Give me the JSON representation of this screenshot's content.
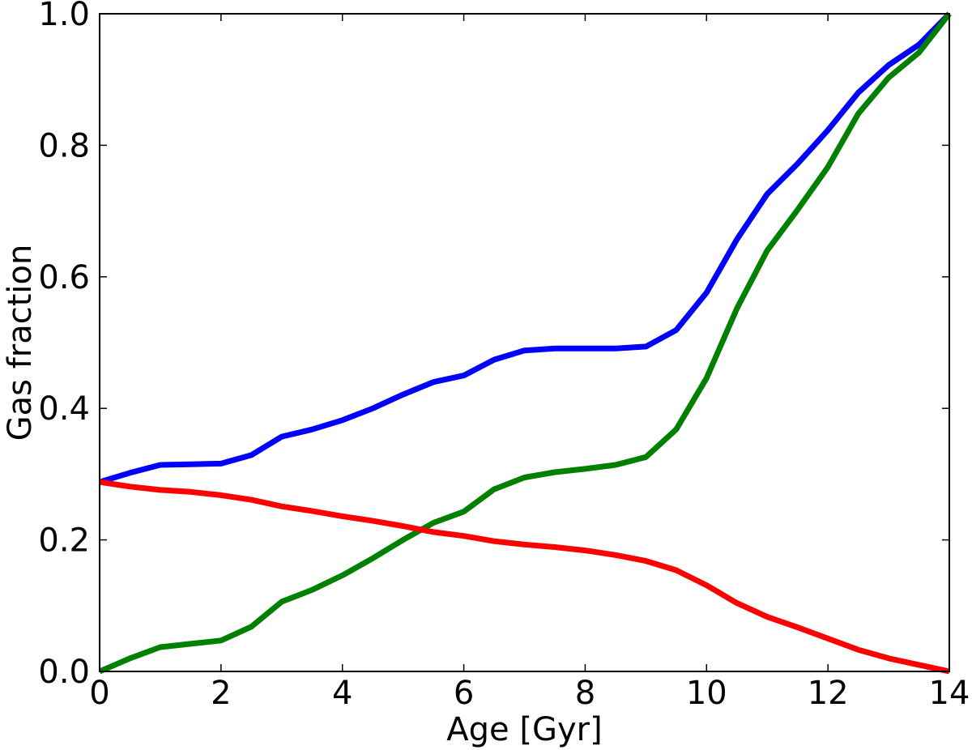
{
  "chart_data": {
    "type": "line",
    "title": "",
    "xlabel": "Age [Gyr]",
    "ylabel": "Gas fraction",
    "xlim": [
      0,
      14
    ],
    "ylim": [
      0.0,
      1.0
    ],
    "xticks": [
      "0",
      "2",
      "4",
      "6",
      "8",
      "10",
      "12",
      "14"
    ],
    "yticks": [
      "0.0",
      "0.2",
      "0.4",
      "0.6",
      "0.8",
      "1.0"
    ],
    "grid": false,
    "legend": "none",
    "series": [
      {
        "color": "#0000ff",
        "x": [
          0,
          0.5,
          1,
          1.5,
          2,
          2.5,
          3,
          3.5,
          4,
          4.5,
          5,
          5.5,
          6,
          6.5,
          7,
          7.5,
          8,
          8.5,
          9,
          9.5,
          10,
          10.5,
          11,
          11.5,
          12,
          12.5,
          13,
          13.5,
          14
        ],
        "y": [
          0.288,
          0.302,
          0.314,
          0.315,
          0.316,
          0.329,
          0.357,
          0.368,
          0.382,
          0.4,
          0.421,
          0.44,
          0.45,
          0.474,
          0.488,
          0.491,
          0.491,
          0.491,
          0.494,
          0.519,
          0.576,
          0.657,
          0.726,
          0.772,
          0.823,
          0.88,
          0.922,
          0.953,
          1.0
        ]
      },
      {
        "color": "#008000",
        "x": [
          0,
          0.5,
          1,
          1.5,
          2,
          2.5,
          3,
          3.5,
          4,
          4.5,
          5,
          5.5,
          6,
          6.5,
          7,
          7.5,
          8,
          8.5,
          9,
          9.5,
          10,
          10.5,
          11,
          11.5,
          12,
          12.5,
          13,
          13.5,
          14
        ],
        "y": [
          0.0,
          0.02,
          0.037,
          0.042,
          0.047,
          0.068,
          0.106,
          0.124,
          0.146,
          0.172,
          0.2,
          0.226,
          0.243,
          0.277,
          0.295,
          0.303,
          0.308,
          0.314,
          0.326,
          0.368,
          0.446,
          0.552,
          0.64,
          0.702,
          0.767,
          0.848,
          0.903,
          0.941,
          1.0
        ]
      },
      {
        "color": "#ff0000",
        "x": [
          0,
          0.5,
          1,
          1.5,
          2,
          2.5,
          3,
          3.5,
          4,
          4.5,
          5,
          5.5,
          6,
          6.5,
          7,
          7.5,
          8,
          8.5,
          9,
          9.5,
          10,
          10.5,
          11,
          11.5,
          12,
          12.5,
          13,
          13.5,
          14
        ],
        "y": [
          0.288,
          0.281,
          0.276,
          0.273,
          0.268,
          0.261,
          0.251,
          0.244,
          0.236,
          0.229,
          0.221,
          0.212,
          0.206,
          0.198,
          0.193,
          0.189,
          0.184,
          0.177,
          0.168,
          0.154,
          0.131,
          0.104,
          0.083,
          0.067,
          0.05,
          0.033,
          0.02,
          0.01,
          0.0
        ]
      }
    ]
  }
}
